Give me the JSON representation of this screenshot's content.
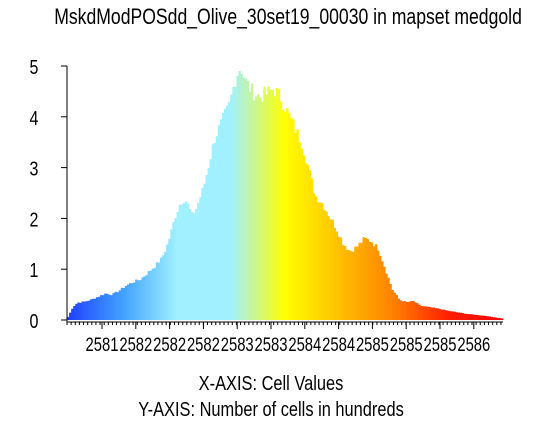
{
  "chart_data": {
    "type": "bar",
    "title": "MskdModPOSdd_Olive_30set19_00030 in mapset medgold",
    "xlabel": "X-AXIS: Cell Values",
    "ylabel": "Y-AXIS: Number of cells in hundreds",
    "x_tick_labels": [
      "2581",
      "2582",
      "2582",
      "2582",
      "2583",
      "2583",
      "2584",
      "2584",
      "2585",
      "2585",
      "2585",
      "2586"
    ],
    "y_tick_labels": [
      "0",
      "1",
      "2",
      "3",
      "4",
      "5"
    ],
    "ylim": [
      0,
      5
    ],
    "grid": false,
    "legend": "none",
    "color_ramp": [
      "#2040ff",
      "#40a0ff",
      "#a0f0ff",
      "#a0f0ff",
      "#ffff00",
      "#ffc000",
      "#ff8000",
      "#ff2000",
      "#ff0000"
    ],
    "bins": 211,
    "profile": [
      [
        0,
        0.06
      ],
      [
        4,
        0.25
      ],
      [
        8,
        0.34
      ],
      [
        14,
        0.36
      ],
      [
        20,
        0.4
      ],
      [
        26,
        0.46
      ],
      [
        32,
        0.52
      ],
      [
        38,
        0.5
      ],
      [
        44,
        0.58
      ],
      [
        50,
        0.68
      ],
      [
        56,
        0.75
      ],
      [
        62,
        0.8
      ],
      [
        68,
        0.92
      ],
      [
        74,
        1.05
      ],
      [
        80,
        1.2
      ],
      [
        84,
        1.4
      ],
      [
        88,
        1.7
      ],
      [
        92,
        2.05
      ],
      [
        96,
        2.3
      ],
      [
        100,
        2.4
      ],
      [
        104,
        2.2
      ],
      [
        106,
        2.05
      ],
      [
        110,
        2.2
      ],
      [
        116,
        2.6
      ],
      [
        120,
        3.0
      ],
      [
        126,
        3.6
      ],
      [
        132,
        3.9
      ],
      [
        138,
        4.2
      ],
      [
        144,
        4.8
      ],
      [
        148,
        5.0
      ],
      [
        152,
        4.7
      ],
      [
        158,
        4.5
      ],
      [
        164,
        4.4
      ],
      [
        170,
        4.45
      ],
      [
        176,
        4.55
      ],
      [
        182,
        4.4
      ],
      [
        188,
        4.1
      ],
      [
        194,
        3.8
      ],
      [
        200,
        3.5
      ],
      [
        206,
        3.0
      ],
      [
        212,
        2.45
      ],
      [
        218,
        2.3
      ],
      [
        224,
        2.05
      ],
      [
        230,
        1.8
      ],
      [
        236,
        1.5
      ],
      [
        242,
        1.35
      ],
      [
        248,
        1.45
      ],
      [
        254,
        1.6
      ],
      [
        260,
        1.55
      ],
      [
        266,
        1.4
      ],
      [
        272,
        1.0
      ],
      [
        278,
        0.6
      ],
      [
        284,
        0.4
      ],
      [
        290,
        0.35
      ],
      [
        296,
        0.37
      ],
      [
        302,
        0.28
      ],
      [
        310,
        0.25
      ],
      [
        318,
        0.22
      ],
      [
        326,
        0.18
      ],
      [
        334,
        0.15
      ],
      [
        342,
        0.12
      ],
      [
        350,
        0.1
      ],
      [
        358,
        0.08
      ],
      [
        366,
        0.05
      ],
      [
        372,
        0.03
      ]
    ]
  }
}
